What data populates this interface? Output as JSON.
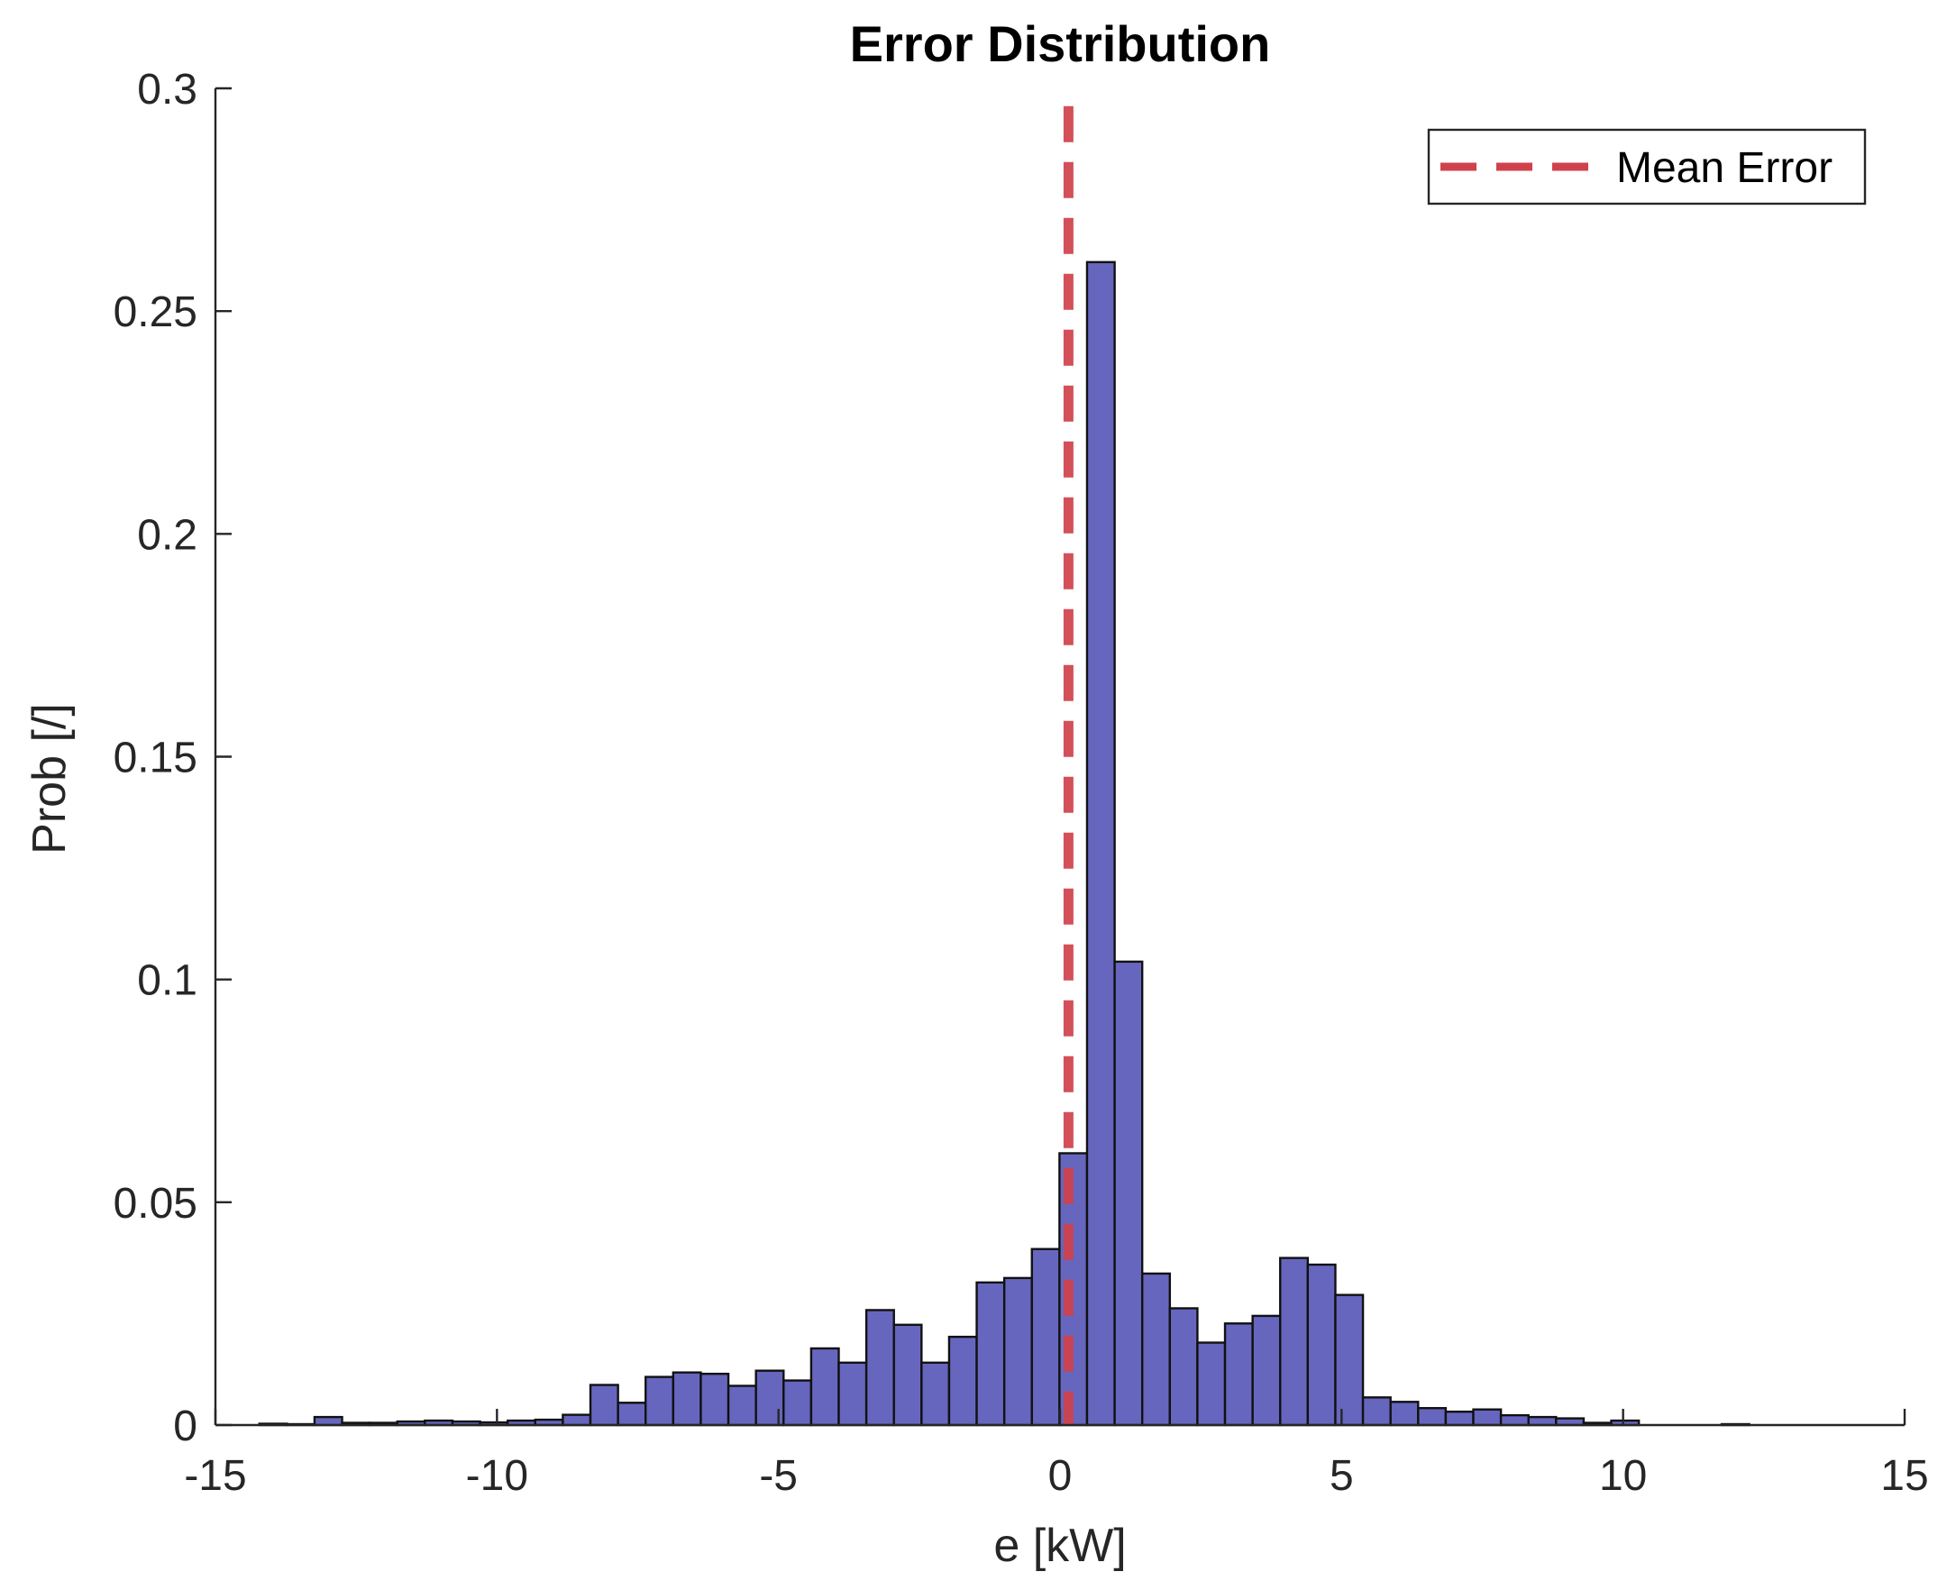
{
  "chart_data": {
    "type": "bar",
    "title": "Error Distribution",
    "xlabel": "e [kW]",
    "ylabel": "Prob [/]",
    "xlim": [
      -15,
      15
    ],
    "ylim": [
      0,
      0.3
    ],
    "xticks": [
      -15,
      -10,
      -5,
      0,
      5,
      10,
      15
    ],
    "xtick_labels": [
      "-15",
      "-10",
      "-5",
      "0",
      "5",
      "10",
      "15"
    ],
    "yticks": [
      0,
      0.05,
      0.1,
      0.15,
      0.2,
      0.25,
      0.3
    ],
    "ytick_labels": [
      "0",
      "0.05",
      "0.1",
      "0.15",
      "0.2",
      "0.25",
      "0.3"
    ],
    "bin_width": 0.49,
    "bins": [
      {
        "x0": -14.22,
        "value": 0.0003
      },
      {
        "x0": -13.73,
        "value": 0.0002
      },
      {
        "x0": -13.24,
        "value": 0.0018
      },
      {
        "x0": -12.75,
        "value": 0.0005
      },
      {
        "x0": -12.26,
        "value": 0.0005
      },
      {
        "x0": -11.77,
        "value": 0.0008
      },
      {
        "x0": -11.28,
        "value": 0.001
      },
      {
        "x0": -10.79,
        "value": 0.0008
      },
      {
        "x0": -10.3,
        "value": 0.0006
      },
      {
        "x0": -9.81,
        "value": 0.001
      },
      {
        "x0": -9.32,
        "value": 0.0012
      },
      {
        "x0": -8.83,
        "value": 0.0023
      },
      {
        "x0": -8.34,
        "value": 0.009
      },
      {
        "x0": -7.85,
        "value": 0.005
      },
      {
        "x0": -7.36,
        "value": 0.0108
      },
      {
        "x0": -6.87,
        "value": 0.0118
      },
      {
        "x0": -6.38,
        "value": 0.0115
      },
      {
        "x0": -5.89,
        "value": 0.0088
      },
      {
        "x0": -5.4,
        "value": 0.0122
      },
      {
        "x0": -4.91,
        "value": 0.01
      },
      {
        "x0": -4.42,
        "value": 0.0172
      },
      {
        "x0": -3.93,
        "value": 0.014
      },
      {
        "x0": -3.44,
        "value": 0.0258
      },
      {
        "x0": -2.95,
        "value": 0.0225
      },
      {
        "x0": -2.46,
        "value": 0.014
      },
      {
        "x0": -1.97,
        "value": 0.0198
      },
      {
        "x0": -1.48,
        "value": 0.032
      },
      {
        "x0": -0.99,
        "value": 0.033
      },
      {
        "x0": -0.5,
        "value": 0.0395
      },
      {
        "x0": -0.01,
        "value": 0.061
      },
      {
        "x0": 0.48,
        "value": 0.261
      },
      {
        "x0": 0.97,
        "value": 0.104
      },
      {
        "x0": 1.46,
        "value": 0.034
      },
      {
        "x0": 1.95,
        "value": 0.0262
      },
      {
        "x0": 2.44,
        "value": 0.0185
      },
      {
        "x0": 2.93,
        "value": 0.0228
      },
      {
        "x0": 3.42,
        "value": 0.0245
      },
      {
        "x0": 3.91,
        "value": 0.0375
      },
      {
        "x0": 4.4,
        "value": 0.036
      },
      {
        "x0": 4.89,
        "value": 0.0292
      },
      {
        "x0": 5.38,
        "value": 0.0062
      },
      {
        "x0": 5.87,
        "value": 0.0052
      },
      {
        "x0": 6.36,
        "value": 0.0038
      },
      {
        "x0": 6.85,
        "value": 0.003
      },
      {
        "x0": 7.34,
        "value": 0.0035
      },
      {
        "x0": 7.83,
        "value": 0.0022
      },
      {
        "x0": 8.32,
        "value": 0.0018
      },
      {
        "x0": 8.81,
        "value": 0.0015
      },
      {
        "x0": 9.3,
        "value": 0.0005
      },
      {
        "x0": 9.79,
        "value": 0.001
      },
      {
        "x0": 11.75,
        "value": 0.0002
      }
    ],
    "mean_line": {
      "x": 0.15,
      "style": "dashed",
      "color": "#d0424b"
    },
    "legend": {
      "position": "top-right",
      "entries": [
        "Mean Error"
      ]
    },
    "bar_color": "#6666bf",
    "grid": false
  }
}
